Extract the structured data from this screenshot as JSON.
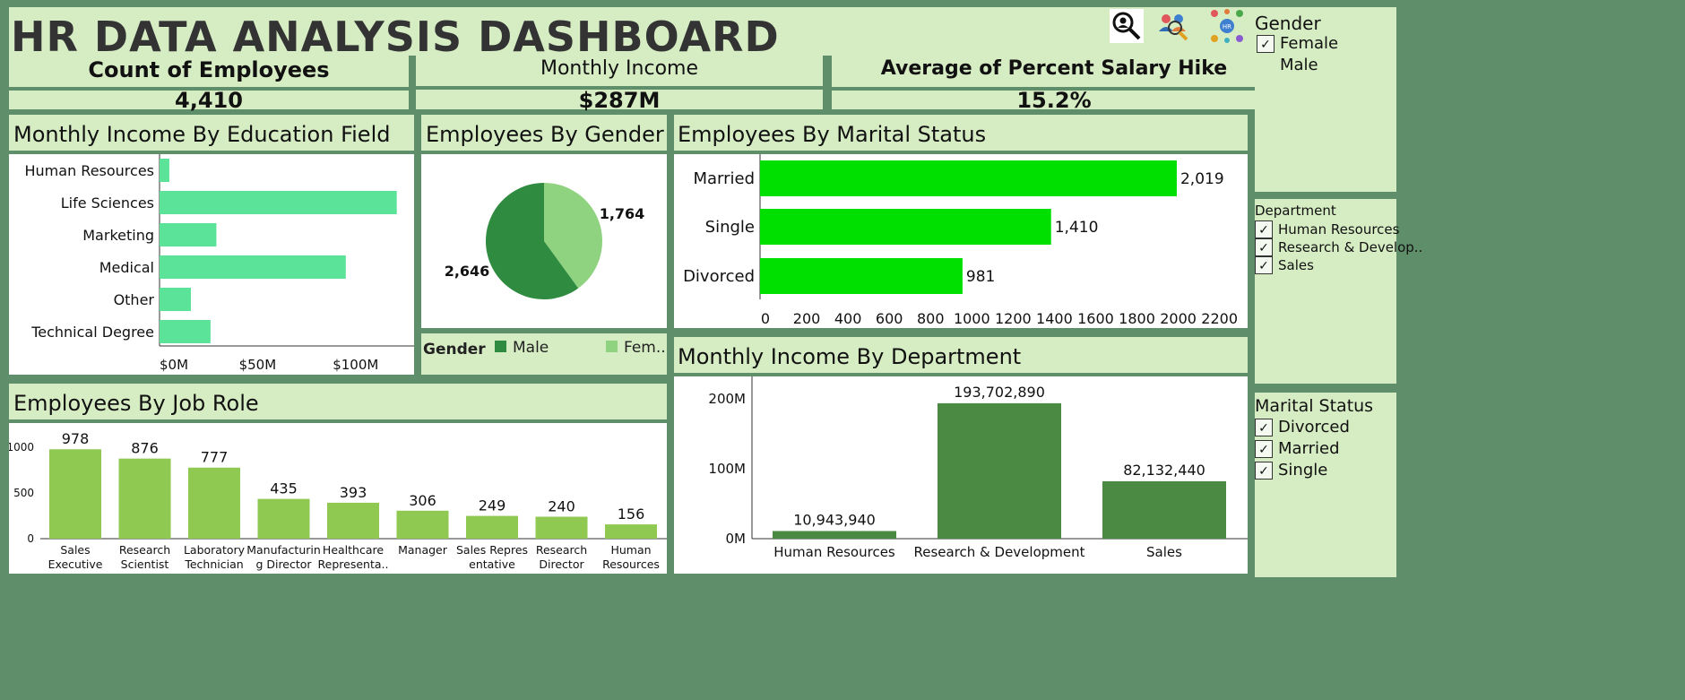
{
  "dashboard": {
    "title": "HR DATA ANALYSIS DASHBOARD",
    "icons": [
      "magnifier-person-icon",
      "people-search-icon",
      "hr-network-icon"
    ]
  },
  "kpis": [
    {
      "label": "Count of Employees",
      "value": "4,410"
    },
    {
      "label": "Monthly Income",
      "value": "$287M"
    },
    {
      "label": "Average of Percent Salary Hike",
      "value": "15.2%"
    }
  ],
  "filters": {
    "gender": {
      "title": "Gender",
      "items": [
        {
          "label": "Female",
          "checked": true
        },
        {
          "label": "Male",
          "checked": false
        }
      ]
    },
    "department": {
      "title": "Department",
      "items": [
        {
          "label": "Human Resources",
          "checked": true
        },
        {
          "label": "Research & Develop..",
          "checked": true
        },
        {
          "label": "Sales",
          "checked": true
        }
      ]
    },
    "marital": {
      "title": "Marital Status",
      "items": [
        {
          "label": "Divorced",
          "checked": true
        },
        {
          "label": "Married",
          "checked": true
        },
        {
          "label": "Single",
          "checked": true
        }
      ]
    }
  },
  "colors": {
    "background": "#5f8f6a",
    "panel": "#d6edc4",
    "education_bar": "#5ce39a",
    "marital_bar": "#00e000",
    "male": "#2e8b3f",
    "female": "#8fd27f",
    "job_bar": "#8fc951",
    "dept_bar": "#4a8a42"
  },
  "chart_data": [
    {
      "id": "education",
      "type": "bar",
      "orientation": "horizontal",
      "title": "Monthly Income By Education Field",
      "categories": [
        "Human Resources",
        "Life Sciences",
        "Marketing",
        "Medical",
        "Other",
        "Technical Degree"
      ],
      "values": [
        5,
        121,
        29,
        95,
        16,
        26
      ],
      "x_ticks": [
        "$0M",
        "$50M",
        "$100M"
      ],
      "xlim": [
        0,
        128
      ]
    },
    {
      "id": "gender",
      "type": "pie",
      "title": "Employees By Gender",
      "categories": [
        "Male",
        "Female"
      ],
      "values": [
        2646,
        1764
      ],
      "labels": [
        "2,646",
        "1,764"
      ],
      "legend": {
        "title": "Gender",
        "entries": [
          "Male",
          "Fem.."
        ],
        "placement": "bottom"
      }
    },
    {
      "id": "marital",
      "type": "bar",
      "orientation": "horizontal",
      "title": "Employees By Marital Status",
      "categories": [
        "Married",
        "Single",
        "Divorced"
      ],
      "values": [
        2019,
        1410,
        981
      ],
      "labels": [
        "2,019",
        "1,410",
        "981"
      ],
      "x_ticks": [
        "0",
        "200",
        "400",
        "600",
        "800",
        "1000",
        "1200",
        "1400",
        "1600",
        "1800",
        "2000",
        "2200"
      ],
      "xlim": [
        0,
        2340
      ]
    },
    {
      "id": "jobrole",
      "type": "bar",
      "title": "Employees By Job Role",
      "categories": [
        [
          "Sales",
          "Executive"
        ],
        [
          "Research",
          "Scientist"
        ],
        [
          "Laboratory",
          "Technician"
        ],
        [
          "Manufacturin",
          "g Director"
        ],
        [
          "Healthcare",
          "Representa.."
        ],
        [
          "Manager"
        ],
        [
          "Sales Repres",
          "entative"
        ],
        [
          "Research",
          "Director"
        ],
        [
          "Human",
          "Resources"
        ]
      ],
      "values": [
        978,
        876,
        777,
        435,
        393,
        306,
        249,
        240,
        156
      ],
      "labels": [
        "978",
        "876",
        "777",
        "435",
        "393",
        "306",
        "249",
        "240",
        "156"
      ],
      "y_ticks": [
        "1000",
        "500",
        "0"
      ],
      "ylim": [
        0,
        1000
      ]
    },
    {
      "id": "department",
      "type": "bar",
      "title": "Monthly Income By Department",
      "categories": [
        "Human Resources",
        "Research & Development",
        "Sales"
      ],
      "values": [
        10943940,
        193702890,
        82132440
      ],
      "labels": [
        "10,943,940",
        "193,702,890",
        "82,132,440"
      ],
      "y_ticks": [
        "200M",
        "100M",
        "0M"
      ],
      "ylim": [
        0,
        200000000
      ]
    }
  ]
}
